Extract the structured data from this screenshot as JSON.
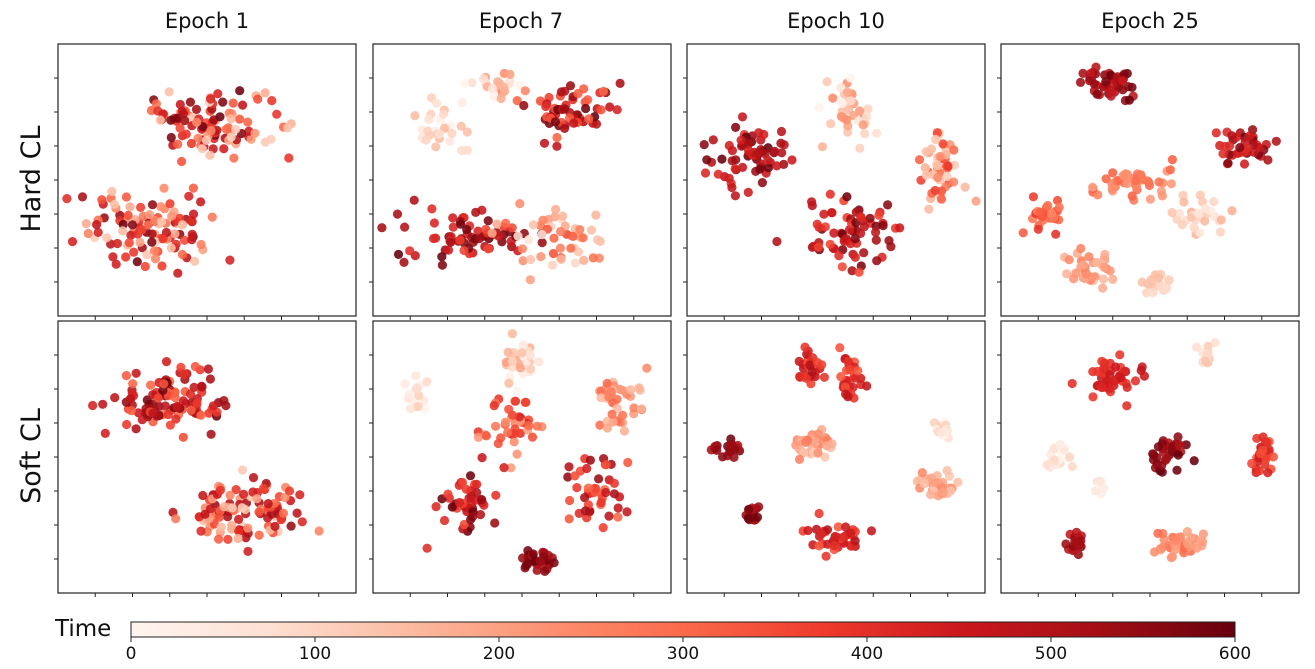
{
  "chart_data": {
    "type": "scatter",
    "description_of_encoding": "t-SNE style embeddings colored by Time (Reds colormap)",
    "columns": [
      "Epoch 1",
      "Epoch 7",
      "Epoch 10",
      "Epoch 25"
    ],
    "rows": [
      "Hard CL",
      "Soft CL"
    ],
    "colorbar": {
      "title": "Time",
      "min": 0,
      "max": 600,
      "ticks": [
        "0",
        "100",
        "200",
        "300",
        "400",
        "500",
        "600"
      ],
      "colormap": "Reds"
    },
    "panels": [
      {
        "row": "Hard CL",
        "column": "Epoch 1",
        "seed": 11,
        "clusters": [
          {
            "cx": 0.52,
            "cy": 0.3,
            "sx": 0.22,
            "sy": 0.12,
            "n": 110,
            "t": [
              100,
              600
            ]
          },
          {
            "cx": 0.32,
            "cy": 0.68,
            "sx": 0.22,
            "sy": 0.13,
            "n": 110,
            "t": [
              100,
              600
            ]
          }
        ]
      },
      {
        "row": "Hard CL",
        "column": "Epoch 7",
        "seed": 23,
        "clusters": [
          {
            "cx": 0.25,
            "cy": 0.3,
            "sx": 0.1,
            "sy": 0.08,
            "n": 30,
            "t": [
              0,
              150
            ]
          },
          {
            "cx": 0.42,
            "cy": 0.14,
            "sx": 0.1,
            "sy": 0.05,
            "n": 25,
            "t": [
              0,
              250
            ]
          },
          {
            "cx": 0.65,
            "cy": 0.25,
            "sx": 0.14,
            "sy": 0.1,
            "n": 60,
            "t": [
              300,
              600
            ]
          },
          {
            "cx": 0.33,
            "cy": 0.7,
            "sx": 0.2,
            "sy": 0.1,
            "n": 70,
            "t": [
              350,
              600
            ]
          },
          {
            "cx": 0.62,
            "cy": 0.72,
            "sx": 0.16,
            "sy": 0.12,
            "n": 50,
            "t": [
              50,
              350
            ]
          }
        ]
      },
      {
        "row": "Hard CL",
        "column": "Epoch 10",
        "seed": 37,
        "clusters": [
          {
            "cx": 0.22,
            "cy": 0.4,
            "sx": 0.13,
            "sy": 0.12,
            "n": 65,
            "t": [
              400,
              600
            ]
          },
          {
            "cx": 0.55,
            "cy": 0.25,
            "sx": 0.1,
            "sy": 0.12,
            "n": 40,
            "t": [
              0,
              250
            ]
          },
          {
            "cx": 0.85,
            "cy": 0.45,
            "sx": 0.08,
            "sy": 0.15,
            "n": 50,
            "t": [
              100,
              400
            ]
          },
          {
            "cx": 0.55,
            "cy": 0.7,
            "sx": 0.16,
            "sy": 0.13,
            "n": 70,
            "t": [
              350,
              600
            ]
          }
        ]
      },
      {
        "row": "Hard CL",
        "column": "Epoch 25",
        "seed": 41,
        "clusters": [
          {
            "cx": 0.36,
            "cy": 0.15,
            "sx": 0.08,
            "sy": 0.07,
            "n": 45,
            "t": [
              450,
              600
            ]
          },
          {
            "cx": 0.81,
            "cy": 0.38,
            "sx": 0.1,
            "sy": 0.07,
            "n": 40,
            "t": [
              400,
              600
            ]
          },
          {
            "cx": 0.15,
            "cy": 0.63,
            "sx": 0.06,
            "sy": 0.06,
            "n": 25,
            "t": [
              250,
              400
            ]
          },
          {
            "cx": 0.43,
            "cy": 0.51,
            "sx": 0.14,
            "sy": 0.06,
            "n": 45,
            "t": [
              200,
              330
            ]
          },
          {
            "cx": 0.65,
            "cy": 0.64,
            "sx": 0.1,
            "sy": 0.07,
            "n": 30,
            "t": [
              30,
              170
            ]
          },
          {
            "cx": 0.3,
            "cy": 0.82,
            "sx": 0.09,
            "sy": 0.06,
            "n": 35,
            "t": [
              150,
              260
            ]
          },
          {
            "cx": 0.52,
            "cy": 0.88,
            "sx": 0.06,
            "sy": 0.04,
            "n": 20,
            "t": [
              60,
              150
            ]
          }
        ]
      },
      {
        "row": "Soft CL",
        "column": "Epoch 1",
        "seed": 53,
        "clusters": [
          {
            "cx": 0.37,
            "cy": 0.3,
            "sx": 0.2,
            "sy": 0.12,
            "n": 110,
            "t": [
              300,
              600
            ]
          },
          {
            "cx": 0.63,
            "cy": 0.7,
            "sx": 0.22,
            "sy": 0.12,
            "n": 110,
            "t": [
              100,
              550
            ]
          }
        ]
      },
      {
        "row": "Soft CL",
        "column": "Epoch 7",
        "seed": 67,
        "clusters": [
          {
            "cx": 0.14,
            "cy": 0.27,
            "sx": 0.05,
            "sy": 0.06,
            "n": 20,
            "t": [
              0,
              120
            ]
          },
          {
            "cx": 0.48,
            "cy": 0.15,
            "sx": 0.06,
            "sy": 0.08,
            "n": 30,
            "t": [
              0,
              200
            ]
          },
          {
            "cx": 0.47,
            "cy": 0.4,
            "sx": 0.08,
            "sy": 0.12,
            "n": 40,
            "t": [
              200,
              450
            ]
          },
          {
            "cx": 0.82,
            "cy": 0.28,
            "sx": 0.08,
            "sy": 0.09,
            "n": 40,
            "t": [
              150,
              300
            ]
          },
          {
            "cx": 0.32,
            "cy": 0.65,
            "sx": 0.08,
            "sy": 0.13,
            "n": 45,
            "t": [
              350,
              600
            ]
          },
          {
            "cx": 0.75,
            "cy": 0.62,
            "sx": 0.09,
            "sy": 0.12,
            "n": 45,
            "t": [
              300,
              550
            ]
          },
          {
            "cx": 0.55,
            "cy": 0.88,
            "sx": 0.05,
            "sy": 0.04,
            "n": 30,
            "t": [
              500,
              600
            ]
          }
        ]
      },
      {
        "row": "Soft CL",
        "column": "Epoch 10",
        "seed": 79,
        "clusters": [
          {
            "cx": 0.42,
            "cy": 0.17,
            "sx": 0.04,
            "sy": 0.06,
            "n": 25,
            "t": [
              350,
              500
            ]
          },
          {
            "cx": 0.55,
            "cy": 0.2,
            "sx": 0.05,
            "sy": 0.08,
            "n": 30,
            "t": [
              300,
              480
            ]
          },
          {
            "cx": 0.13,
            "cy": 0.47,
            "sx": 0.04,
            "sy": 0.04,
            "n": 20,
            "t": [
              500,
              600
            ]
          },
          {
            "cx": 0.43,
            "cy": 0.46,
            "sx": 0.08,
            "sy": 0.05,
            "n": 35,
            "t": [
              100,
              280
            ]
          },
          {
            "cx": 0.86,
            "cy": 0.4,
            "sx": 0.03,
            "sy": 0.04,
            "n": 15,
            "t": [
              0,
              120
            ]
          },
          {
            "cx": 0.85,
            "cy": 0.6,
            "sx": 0.08,
            "sy": 0.05,
            "n": 35,
            "t": [
              120,
              250
            ]
          },
          {
            "cx": 0.22,
            "cy": 0.71,
            "sx": 0.03,
            "sy": 0.04,
            "n": 20,
            "t": [
              500,
              600
            ]
          },
          {
            "cx": 0.5,
            "cy": 0.8,
            "sx": 0.09,
            "sy": 0.07,
            "n": 40,
            "t": [
              330,
              500
            ]
          }
        ]
      },
      {
        "row": "Soft CL",
        "column": "Epoch 25",
        "seed": 91,
        "clusters": [
          {
            "cx": 0.38,
            "cy": 0.21,
            "sx": 0.09,
            "sy": 0.07,
            "n": 45,
            "t": [
              380,
              480
            ]
          },
          {
            "cx": 0.69,
            "cy": 0.13,
            "sx": 0.03,
            "sy": 0.05,
            "n": 15,
            "t": [
              60,
              150
            ]
          },
          {
            "cx": 0.18,
            "cy": 0.5,
            "sx": 0.05,
            "sy": 0.05,
            "n": 20,
            "t": [
              0,
              100
            ]
          },
          {
            "cx": 0.56,
            "cy": 0.49,
            "sx": 0.07,
            "sy": 0.06,
            "n": 35,
            "t": [
              500,
              600
            ]
          },
          {
            "cx": 0.88,
            "cy": 0.49,
            "sx": 0.04,
            "sy": 0.08,
            "n": 30,
            "t": [
              330,
              450
            ]
          },
          {
            "cx": 0.33,
            "cy": 0.6,
            "sx": 0.02,
            "sy": 0.03,
            "n": 8,
            "t": [
              0,
              80
            ]
          },
          {
            "cx": 0.25,
            "cy": 0.81,
            "sx": 0.03,
            "sy": 0.04,
            "n": 20,
            "t": [
              460,
              560
            ]
          },
          {
            "cx": 0.6,
            "cy": 0.82,
            "sx": 0.1,
            "sy": 0.05,
            "n": 45,
            "t": [
              180,
              300
            ]
          }
        ]
      }
    ]
  }
}
